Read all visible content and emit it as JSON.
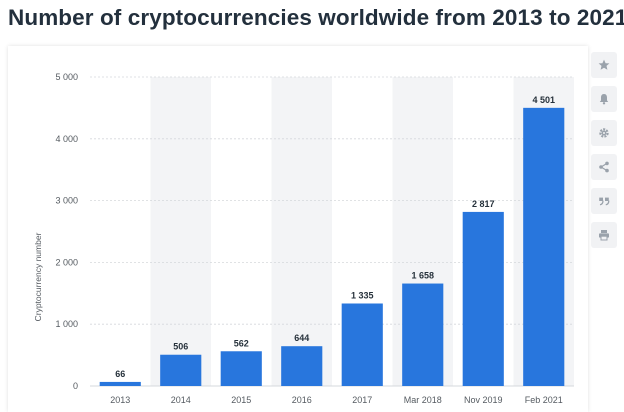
{
  "page": {
    "title": "Number of cryptocurrencies worldwide from 2013 to 2021"
  },
  "toolbar": {
    "icons": [
      "star-icon",
      "bell-icon",
      "gear-icon",
      "share-icon",
      "quote-icon",
      "print-icon"
    ]
  },
  "colors": {
    "bar": "#2876dd",
    "band": "#f3f4f6",
    "grid": "#d5d8dc",
    "icon": "#9aa2ab"
  },
  "chart_data": {
    "type": "bar",
    "title": "Number of cryptocurrencies worldwide from 2013 to 2021",
    "xlabel": "",
    "ylabel": "Cryptocurrency number",
    "categories": [
      "2013",
      "2014",
      "2015",
      "2016",
      "2017",
      "Mar 2018",
      "Nov 2019",
      "Feb 2021"
    ],
    "values": [
      66,
      506,
      562,
      644,
      1335,
      1658,
      2817,
      4501
    ],
    "value_labels": [
      "66",
      "506",
      "562",
      "644",
      "1 335",
      "1 658",
      "2 817",
      "4 501"
    ],
    "ylim": [
      0,
      5000
    ],
    "yticks": [
      0,
      1000,
      2000,
      3000,
      4000,
      5000
    ],
    "ytick_labels": [
      "0",
      "1 000",
      "2 000",
      "3 000",
      "4 000",
      "5 000"
    ],
    "grid": true,
    "legend": "none"
  }
}
